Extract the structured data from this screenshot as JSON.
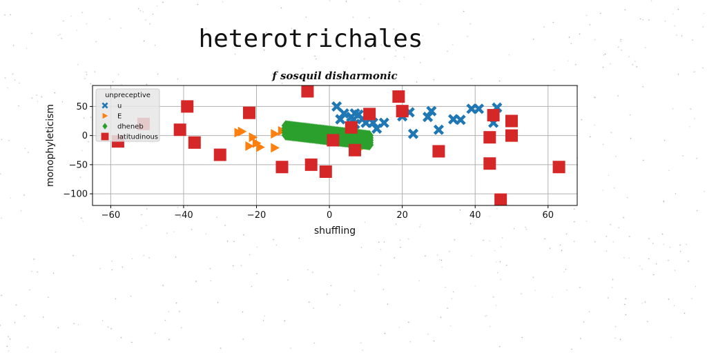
{
  "suptitle": "heterotrichales",
  "chart_data": {
    "type": "scatter",
    "title": "f sosquil disharmonic",
    "xlabel": "shuffling",
    "ylabel": "monophyleticism",
    "xlim": [
      -65,
      68
    ],
    "ylim": [
      -120,
      86
    ],
    "xticks": [
      -60,
      -40,
      -20,
      0,
      20,
      40,
      60
    ],
    "yticks": [
      50,
      0,
      -50,
      -100
    ],
    "grid": true,
    "legend": {
      "title": "unpreceptive",
      "placement": "upper-left"
    },
    "series": [
      {
        "name": "u",
        "marker": "x",
        "color": "#1f77b4",
        "points": [
          [
            2,
            50
          ],
          [
            3,
            28
          ],
          [
            4,
            38
          ],
          [
            6,
            32
          ],
          [
            7,
            38
          ],
          [
            8,
            36
          ],
          [
            9,
            28
          ],
          [
            7,
            20
          ],
          [
            10,
            22
          ],
          [
            12,
            22
          ],
          [
            13,
            12
          ],
          [
            15,
            22
          ],
          [
            20,
            33
          ],
          [
            22,
            40
          ],
          [
            23,
            3
          ],
          [
            27,
            32
          ],
          [
            28,
            42
          ],
          [
            30,
            10
          ],
          [
            34,
            28
          ],
          [
            36,
            27
          ],
          [
            39,
            46
          ],
          [
            41,
            46
          ],
          [
            45,
            22
          ],
          [
            46,
            48
          ]
        ]
      },
      {
        "name": "E",
        "marker": "triangle-right",
        "color": "#ff7f0e",
        "points": [
          [
            -25,
            5
          ],
          [
            -24,
            7
          ],
          [
            -22,
            -18
          ],
          [
            -21,
            -3
          ],
          [
            -20,
            -13
          ],
          [
            -19,
            -20
          ],
          [
            -15,
            3
          ],
          [
            -15,
            -21
          ],
          [
            -13,
            8
          ],
          [
            9,
            -20
          ]
        ]
      },
      {
        "name": "dheneb",
        "marker": "diamond",
        "color": "#2ca02c",
        "band": {
          "x0": -12,
          "x1": 11,
          "y_start": 9,
          "y_end": -8,
          "half_height": 9
        }
      },
      {
        "name": "latitudinous",
        "marker": "square",
        "color": "#d62728",
        "points": [
          [
            -58,
            -10
          ],
          [
            -51,
            20
          ],
          [
            -41,
            10
          ],
          [
            -39,
            50
          ],
          [
            -37,
            -12
          ],
          [
            -30,
            -33
          ],
          [
            -22,
            39
          ],
          [
            -13,
            -54
          ],
          [
            -6,
            76
          ],
          [
            -5,
            -50
          ],
          [
            -1,
            -62
          ],
          [
            1,
            -8
          ],
          [
            6,
            14
          ],
          [
            7,
            -25
          ],
          [
            11,
            37
          ],
          [
            19,
            67
          ],
          [
            20,
            42
          ],
          [
            30,
            -27
          ],
          [
            44,
            -48
          ],
          [
            44,
            -3
          ],
          [
            45,
            35
          ],
          [
            47,
            -110
          ],
          [
            50,
            25
          ],
          [
            50,
            0
          ],
          [
            63,
            -54
          ]
        ]
      }
    ]
  },
  "colors": {
    "grid": "#b0b0b0",
    "legend_bg": "#e6e6e6"
  }
}
